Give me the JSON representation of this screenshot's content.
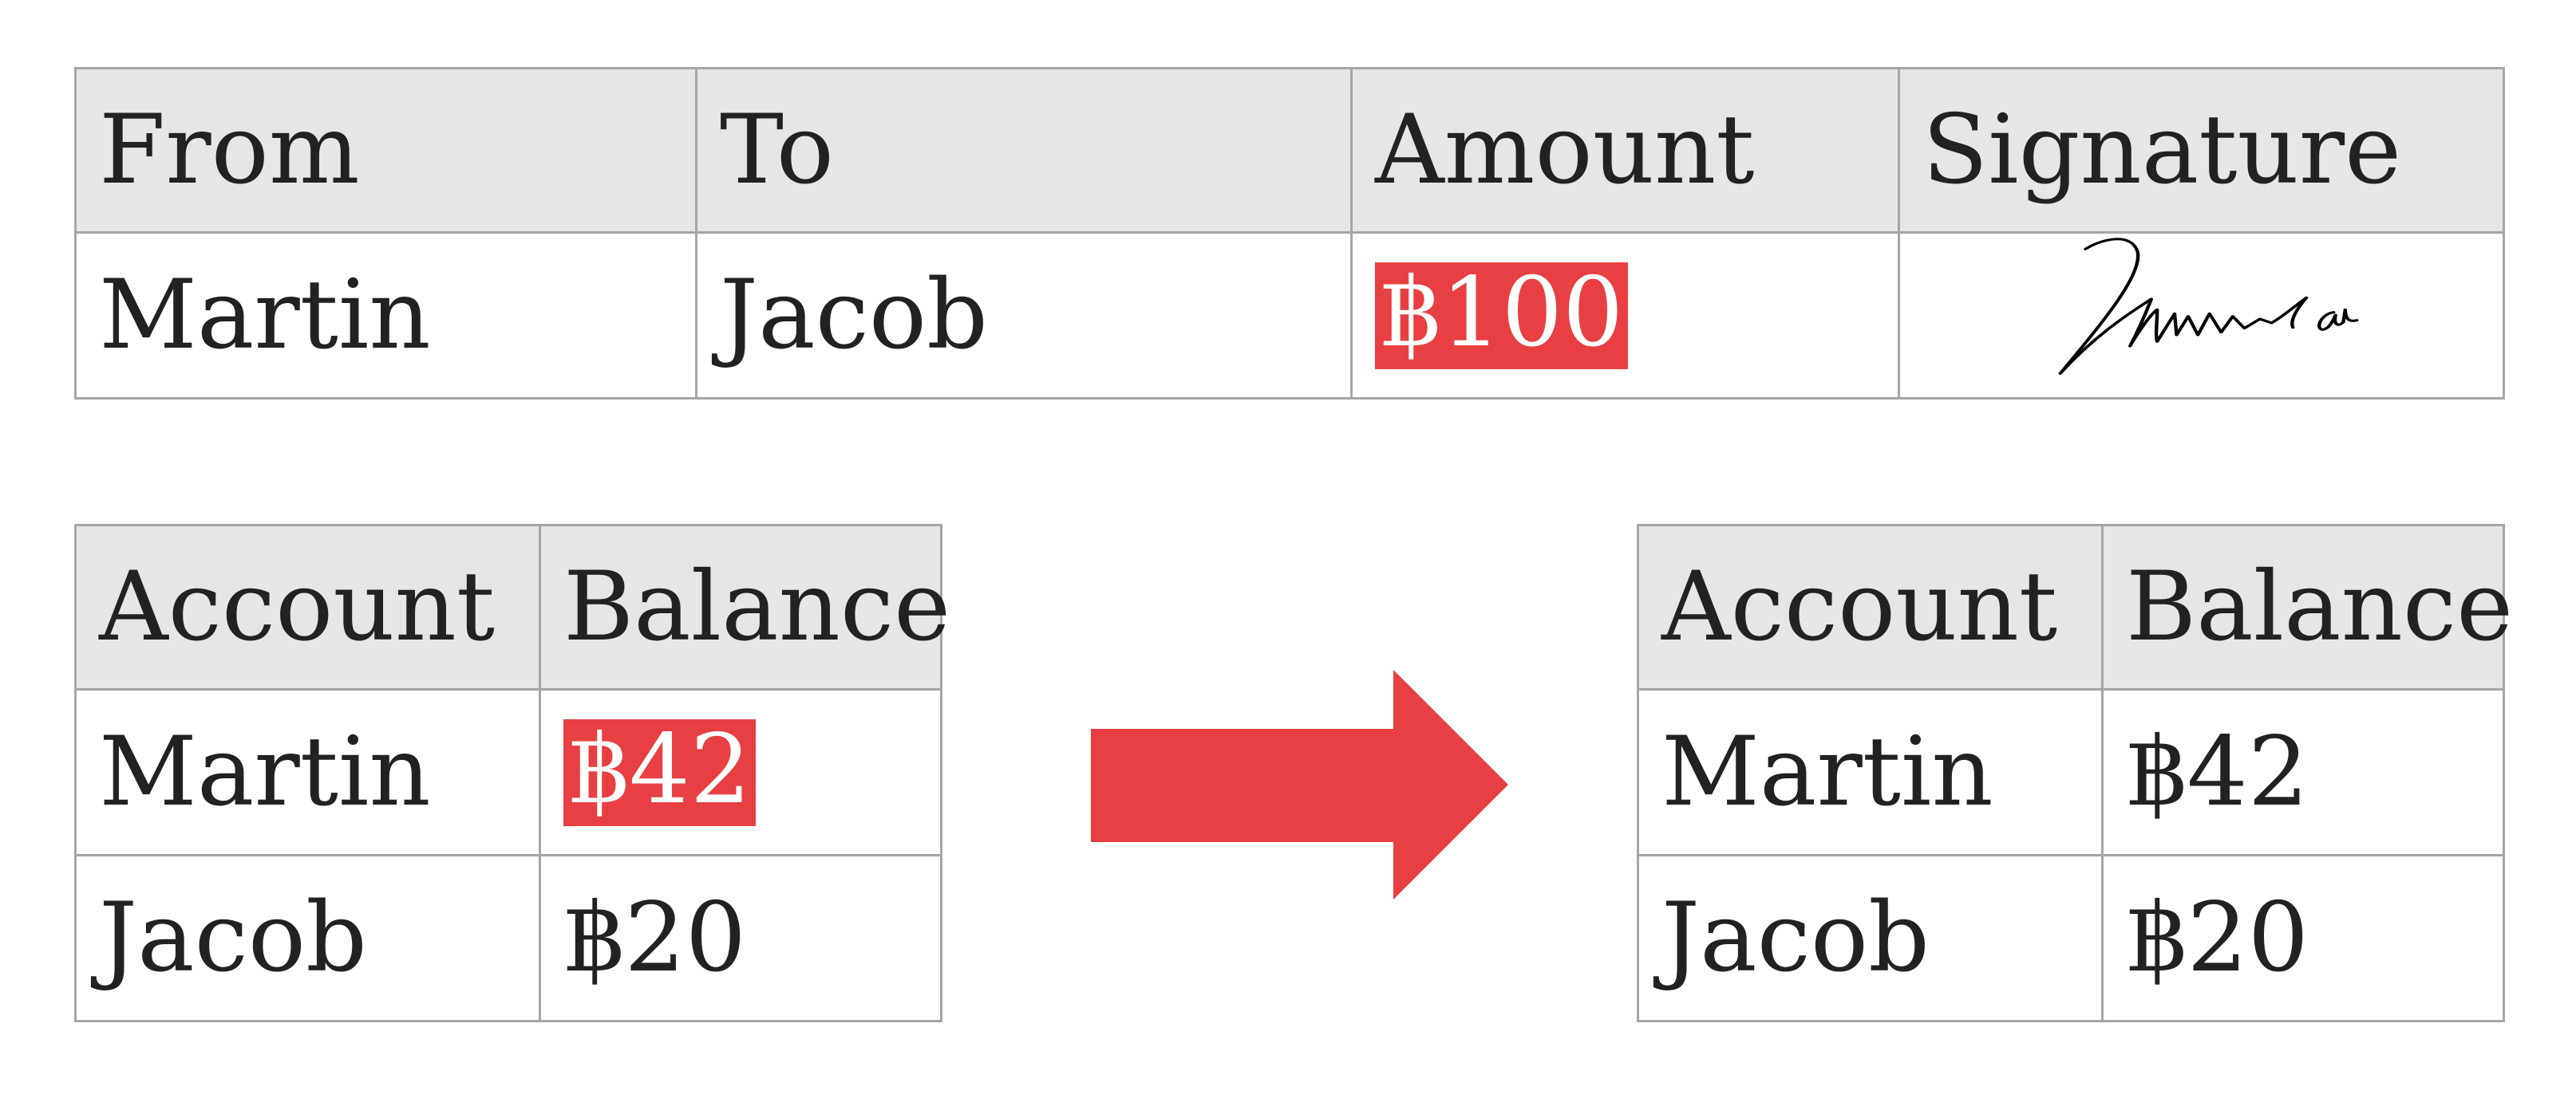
{
  "transaction": {
    "headers": [
      "From",
      "To",
      "Amount",
      "Signature"
    ],
    "row": {
      "from": "Martin",
      "to": "Jacob",
      "amount": "฿100",
      "signature_text": "Muhamad ou"
    }
  },
  "before": {
    "headers": [
      "Account",
      "Balance"
    ],
    "rows": [
      {
        "account": "Martin",
        "balance": "฿42"
      },
      {
        "account": "Jacob",
        "balance": "฿20"
      }
    ]
  },
  "after": {
    "headers": [
      "Account",
      "Balance"
    ],
    "rows": [
      {
        "account": "Martin",
        "balance": "฿42"
      },
      {
        "account": "Jacob",
        "balance": "฿20"
      }
    ]
  },
  "colors": {
    "highlight": "#e84042",
    "header_bg": "#e6e6e6",
    "border": "#a6a6a6"
  },
  "arrow": {
    "icon": "arrow-right-icon"
  }
}
